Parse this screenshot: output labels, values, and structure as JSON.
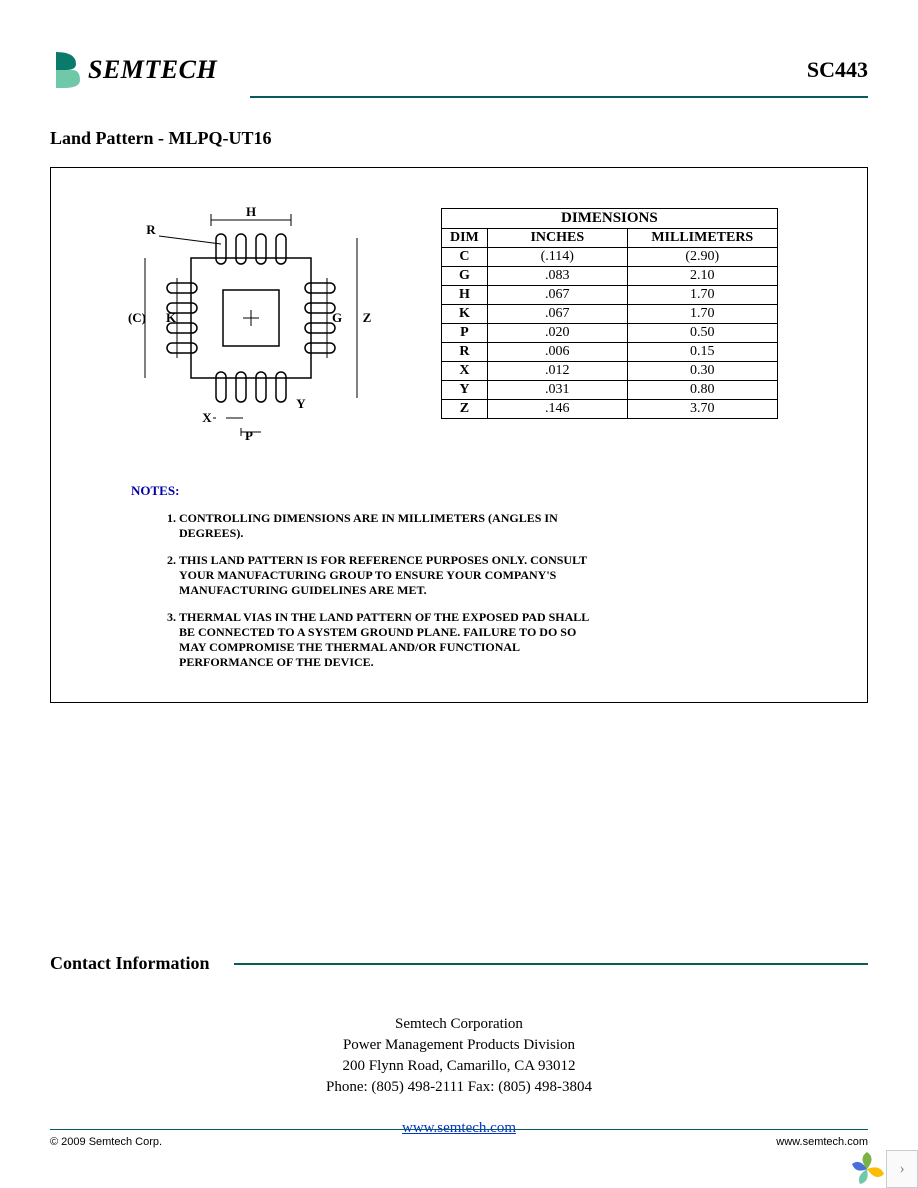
{
  "header": {
    "brand": "SEMTECH",
    "part_number": "SC443",
    "rule_color": "#0a5a5a",
    "logo_colors": {
      "dark": "#0a7a6a",
      "light": "#6fc9a8"
    }
  },
  "section": {
    "title": "Land Pattern - MLPQ-UT16"
  },
  "dimensions_table": {
    "heading": "DIMENSIONS",
    "columns": [
      "DIM",
      "INCHES",
      "MILLIMETERS"
    ],
    "rows": [
      {
        "dim": "C",
        "inches": "(.114)",
        "mm": "(2.90)"
      },
      {
        "dim": "G",
        "inches": ".083",
        "mm": "2.10"
      },
      {
        "dim": "H",
        "inches": ".067",
        "mm": "1.70"
      },
      {
        "dim": "K",
        "inches": ".067",
        "mm": "1.70"
      },
      {
        "dim": "P",
        "inches": ".020",
        "mm": "0.50"
      },
      {
        "dim": "R",
        "inches": ".006",
        "mm": "0.15"
      },
      {
        "dim": "X",
        "inches": ".012",
        "mm": "0.30"
      },
      {
        "dim": "Y",
        "inches": ".031",
        "mm": "0.80"
      },
      {
        "dim": "Z",
        "inches": ".146",
        "mm": "3.70"
      }
    ]
  },
  "diagram": {
    "package_square": 120,
    "inner_pad": 56,
    "pad_w": 10,
    "pad_h": 30,
    "pad_spacing": 20,
    "stroke": "#000000",
    "labels": {
      "H": "H",
      "R": "R",
      "C": "(C)",
      "K": "K",
      "G": "G",
      "Z": "Z",
      "X": "X",
      "P": "P",
      "Y": "Y"
    }
  },
  "notes": {
    "label": "NOTES:",
    "items": [
      "CONTROLLING DIMENSIONS ARE IN MILLIMETERS (ANGLES IN DEGREES).",
      "THIS LAND PATTERN IS FOR REFERENCE PURPOSES ONLY. CONSULT YOUR MANUFACTURING GROUP TO ENSURE YOUR COMPANY'S MANUFACTURING GUIDELINES ARE MET.",
      "THERMAL VIAS IN THE LAND PATTERN OF THE EXPOSED PAD SHALL BE CONNECTED TO A SYSTEM GROUND PLANE. FAILURE TO DO SO MAY COMPROMISE THE THERMAL AND/OR FUNCTIONAL PERFORMANCE OF THE DEVICE."
    ]
  },
  "contact": {
    "title": "Contact Information",
    "lines": [
      "Semtech Corporation",
      "Power Management Products Division",
      "200 Flynn Road, Camarillo, CA  93012",
      "Phone:  (805) 498-2111   Fax:  (805) 498-3804"
    ],
    "link": "www.semtech.com"
  },
  "footer": {
    "copyright": "© 2009 Semtech Corp.",
    "link": "www.semtech.com"
  },
  "corner": {
    "petal_colors": [
      "#7bb342",
      "#fbbc04",
      "#4a6fd8"
    ],
    "arrow": "›"
  }
}
